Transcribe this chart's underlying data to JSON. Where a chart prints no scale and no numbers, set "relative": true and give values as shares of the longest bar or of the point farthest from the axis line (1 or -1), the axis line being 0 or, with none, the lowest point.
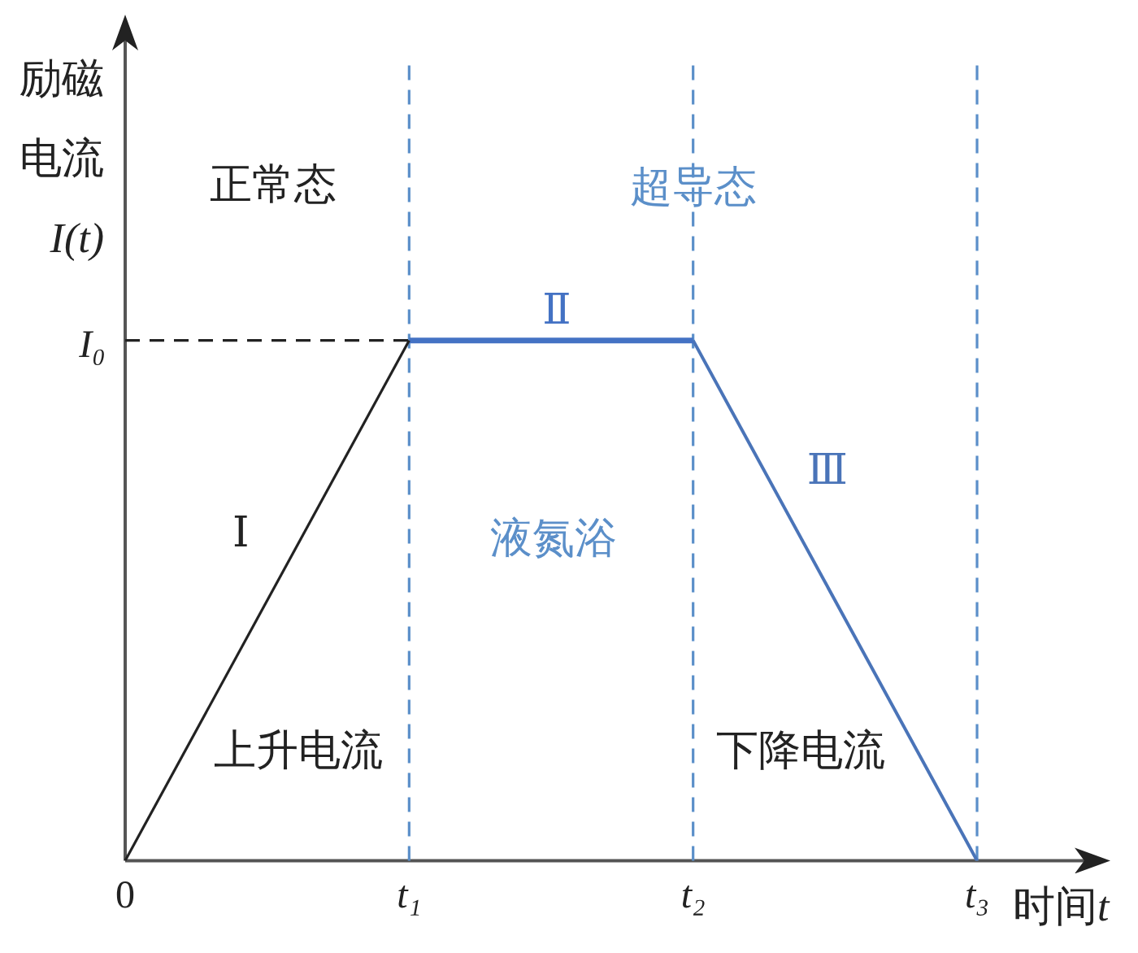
{
  "chart_data": {
    "type": "line",
    "relative": true,
    "xlabel": "时间t",
    "ylabel": "励磁电流I(t)",
    "categories": [
      "0",
      "t₁",
      "t₂",
      "t₃"
    ],
    "series": [
      {
        "name": "Ⅰ",
        "color": "#222222",
        "values": [
          0,
          1,
          null,
          null
        ]
      },
      {
        "name": "Ⅱ",
        "color": "#4472c4",
        "values": [
          null,
          1,
          1,
          null
        ]
      },
      {
        "name": "Ⅲ",
        "color": "#4a74b8",
        "values": [
          null,
          null,
          1,
          0
        ]
      }
    ],
    "ref_lines": [
      {
        "axis": "x",
        "value": "t₁",
        "color": "#5b8fc9",
        "line_style": "dashed"
      },
      {
        "axis": "x",
        "value": "t₂",
        "color": "#5b8fc9",
        "line_style": "dashed"
      },
      {
        "axis": "x",
        "value": "t₃",
        "color": "#5b8fc9",
        "line_style": "dashed"
      },
      {
        "axis": "y",
        "value": 1,
        "label": "I₀",
        "color": "#222222",
        "line_style": "dashed"
      }
    ],
    "annotations": [
      "正常态",
      "超导态",
      "液氮浴",
      "上升电流",
      "下降电流"
    ]
  }
}
